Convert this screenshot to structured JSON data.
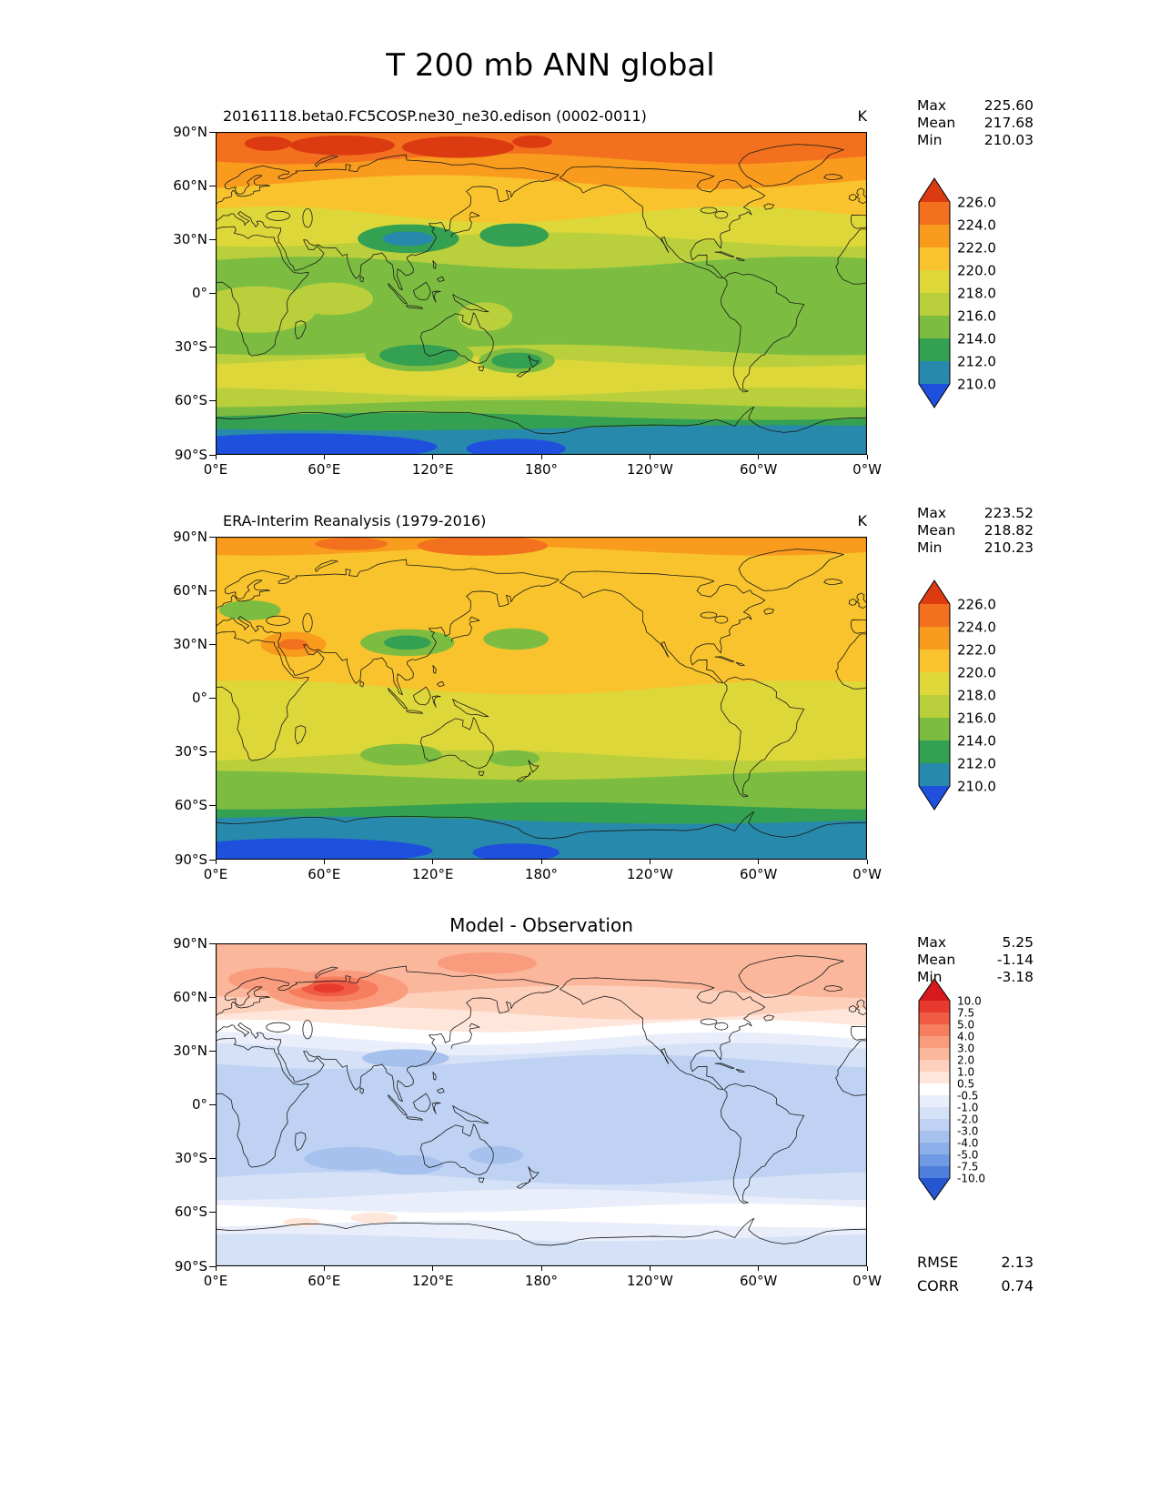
{
  "page_title": "T 200 mb ANN global",
  "axes": {
    "lat_ticks": [
      "90°N",
      "60°N",
      "30°N",
      "0°",
      "30°S",
      "60°S",
      "90°S"
    ],
    "lon_ticks": [
      "0°E",
      "60°E",
      "120°E",
      "180°",
      "120°W",
      "60°W",
      "0°W"
    ]
  },
  "panels": [
    {
      "id": "model",
      "title": "20161118.beta0.FC5COSP.ne30_ne30.edison (0002-0011)",
      "units": "K",
      "stats": [
        {
          "label": "Max",
          "value": "225.60"
        },
        {
          "label": "Mean",
          "value": "217.68"
        },
        {
          "label": "Min",
          "value": "210.03"
        }
      ],
      "colorbar": {
        "labels": [
          "226.0",
          "224.0",
          "222.0",
          "220.0",
          "218.0",
          "216.0",
          "214.0",
          "212.0",
          "210.0"
        ],
        "colors": [
          "#dc3a10",
          "#f3701e",
          "#f99b1d",
          "#f8c32c",
          "#ddd73a",
          "#b9cf3b",
          "#7cbd41",
          "#33a052",
          "#2789ab",
          "#1e50dd"
        ]
      }
    },
    {
      "id": "obs",
      "title": "ERA-Interim Reanalysis (1979-2016)",
      "units": "K",
      "stats": [
        {
          "label": "Max",
          "value": "223.52"
        },
        {
          "label": "Mean",
          "value": "218.82"
        },
        {
          "label": "Min",
          "value": "210.23"
        }
      ],
      "colorbar": {
        "labels": [
          "226.0",
          "224.0",
          "222.0",
          "220.0",
          "218.0",
          "216.0",
          "214.0",
          "212.0",
          "210.0"
        ],
        "colors": [
          "#dc3a10",
          "#f3701e",
          "#f99b1d",
          "#f8c32c",
          "#ddd73a",
          "#b9cf3b",
          "#7cbd41",
          "#33a052",
          "#2789ab",
          "#1e50dd"
        ]
      }
    },
    {
      "id": "diff",
      "title": "Model - Observation",
      "units": "",
      "stats": [
        {
          "label": "Max",
          "value": "5.25"
        },
        {
          "label": "Mean",
          "value": "-1.14"
        },
        {
          "label": "Min",
          "value": "-3.18"
        }
      ],
      "colorbar": {
        "labels": [
          "10.0",
          "7.5",
          "5.0",
          "4.0",
          "3.0",
          "2.0",
          "1.0",
          "0.5",
          "-0.5",
          "-1.0",
          "-2.0",
          "-3.0",
          "-4.0",
          "-5.0",
          "-7.5",
          "-10.0"
        ],
        "colors": [
          "#d6191c",
          "#e8392e",
          "#f05b44",
          "#f67d5e",
          "#f99c7d",
          "#fbb79c",
          "#fdd0bc",
          "#fee6da",
          "#ffffff",
          "#e9eefa",
          "#d5e1f7",
          "#bfd2f3",
          "#a6c1ee",
          "#8cafe9",
          "#6f99e3",
          "#4e7fdb",
          "#2457d0"
        ]
      },
      "footer_stats": [
        {
          "label": "RMSE",
          "value": "2.13"
        },
        {
          "label": "CORR",
          "value": "0.74"
        }
      ]
    }
  ],
  "chart_data": [
    {
      "type": "heatmap",
      "variable": "T",
      "level": "200 mb",
      "season": "ANN",
      "region": "global",
      "title": "20161118.beta0.FC5COSP.ne30_ne30.edison (0002-0011)",
      "units": "K",
      "projection": "equirectangular, lon 0°E to 0°W (0-360), lat 90°N to 90°S",
      "stats": {
        "max": 225.6,
        "mean": 217.68,
        "min": 210.03
      },
      "contour_levels": [
        210.0,
        212.0,
        214.0,
        216.0,
        218.0,
        220.0,
        222.0,
        224.0,
        226.0
      ],
      "summary": "Warm (orange/red, >222 K) high northern latitudes, yellow-gold midlatitudes, green tropics (~214-218 K), yellow band 30-55S, cold teal/blue (<212 K) over Antarctica; cool green-teal pools over N Pacific and N Atlantic near 30N and S Pacific/S Atlantic near 35S."
    },
    {
      "type": "heatmap",
      "variable": "T",
      "level": "200 mb",
      "season": "ANN",
      "region": "global",
      "title": "ERA-Interim Reanalysis (1979-2016)",
      "units": "K",
      "projection": "equirectangular, lon 0°E to 0°W (0-360), lat 90°N to 90°S",
      "stats": {
        "max": 223.52,
        "mean": 218.82,
        "min": 210.23
      },
      "contour_levels": [
        210.0,
        212.0,
        214.0,
        216.0,
        218.0,
        220.0,
        222.0,
        224.0,
        226.0
      ],
      "summary": "Broad amber/gold (220-222 K) northern hemisphere and tropics with orange maxima over the Arctic and South Asia, green pools near 30N oceans and 50N Eurasia, yellow-green to green 20-60S, teal/blue (<212 K) around Antarctica."
    },
    {
      "type": "heatmap",
      "variable": "T difference (Model - Observation)",
      "level": "200 mb",
      "season": "ANN",
      "region": "global",
      "title": "Model - Observation",
      "units": "K",
      "projection": "equirectangular, lon 0°E to 0°W (0-360), lat 90°N to 90°S",
      "stats": {
        "max": 5.25,
        "mean": -1.14,
        "min": -3.18,
        "rmse": 2.13,
        "corr": 0.74
      },
      "contour_levels": [
        -10.0,
        -7.5,
        -5.0,
        -4.0,
        -3.0,
        -2.0,
        -1.0,
        -0.5,
        0.5,
        1.0,
        2.0,
        3.0,
        4.0,
        5.0,
        7.5,
        10.0
      ],
      "summary": "Warm bias (red, up to ~+5 K) poleward of ~45N with maximum over northeast Asia; near-zero white band near 40N; widespread cold bias (blue, -1 to -4 K) from 30N to 55S with deeper blue pools near 30S; near-zero band around 60S."
    }
  ]
}
